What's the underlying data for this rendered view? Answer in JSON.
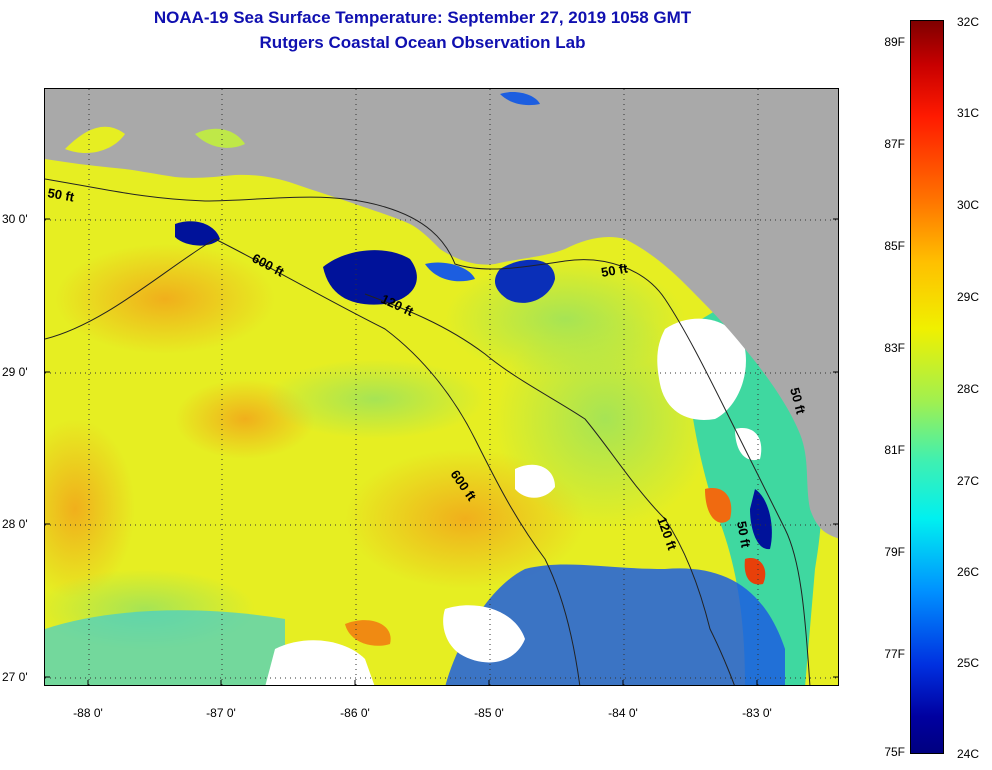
{
  "title": {
    "line1": "NOAA-19 Sea Surface Temperature:  September 27, 2019 1058 GMT",
    "line2": "Rutgers Coastal Ocean Observation Lab"
  },
  "map": {
    "lat_labels": [
      "30 0'",
      "29 0'",
      "28 0'",
      "27 0'"
    ],
    "lon_labels": [
      "-88 0'",
      "-87 0'",
      "-86 0'",
      "-85 0'",
      "-84 0'",
      "-83 0'"
    ],
    "contour_labels": [
      "50 ft",
      "600 ft",
      "120 ft",
      "50 ft",
      "600 ft",
      "120 ft",
      "50 ft",
      "50 ft"
    ],
    "colors": {
      "land": "#a9a9a9",
      "water_base": "#e8f01e",
      "warm": "#f2b91e",
      "cool": "#a8e84a",
      "cold": "#20d8a0",
      "coldest": "#00109a",
      "cloud": "#ffffff"
    }
  },
  "colorbar": {
    "f_labels": [
      "89F",
      "87F",
      "85F",
      "83F",
      "81F",
      "79F",
      "77F",
      "75F"
    ],
    "c_labels": [
      "32C",
      "31C",
      "30C",
      "29C",
      "28C",
      "27C",
      "26C",
      "25C",
      "24C"
    ]
  }
}
